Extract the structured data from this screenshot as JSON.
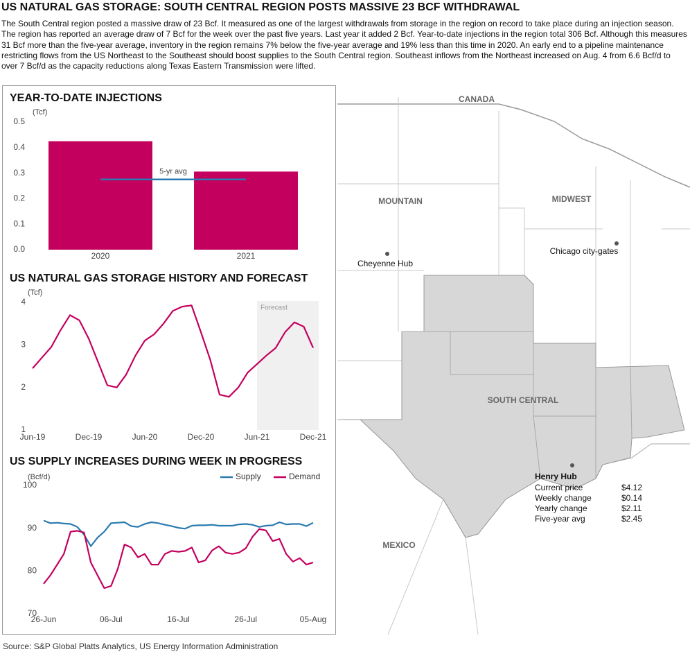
{
  "header": {
    "title": "US NATURAL GAS STORAGE: SOUTH CENTRAL REGION POSTS MASSIVE 23 BCF WITHDRAWAL",
    "body": "The South Central region posted a massive draw of 23 Bcf. It measured as one of the largest withdrawals from storage in the region on record to take place during an injection season. The region has reported an average draw of 7 Bcf for the week over the past five years. Last year it added 2 Bcf. Year-to-date injections in the region total 306 Bcf. Although this measures 31 Bcf more than the five-year average, inventory in the region remains 7% below the five-year average and 19% less than this time in 2020. An early end to a pipeline maintenance restricting flows from the US Northeast to the Southeast should boost supplies to the South Central region. Southeast inflows from the Northeast increased on Aug. 4 from 6.6 Bcf/d to over 7 Bcf/d as the capacity reductions along Texas Eastern Transmission were lifted."
  },
  "chart_data": [
    {
      "type": "bar",
      "title": "YEAR-TO-DATE INJECTIONS",
      "y_label": "(Tcf)",
      "categories": [
        "2020",
        "2021"
      ],
      "values": [
        0.425,
        0.306
      ],
      "color": "#c4005e",
      "ylim": [
        0,
        0.5
      ],
      "yticks": [
        {
          "value": 0,
          "label": "0.0"
        },
        0.1,
        0.2,
        0.3,
        0.4,
        0.5
      ],
      "reference": {
        "label": "5-yr avg",
        "value": 0.275,
        "color": "#2a7ab0"
      }
    },
    {
      "type": "line",
      "title": "US NATURAL GAS STORAGE HISTORY AND FORECAST",
      "y_label": "(Tcf)",
      "categories": [
        "Jun-19",
        null,
        null,
        null,
        null,
        null,
        "Dec-19",
        null,
        null,
        null,
        null,
        null,
        "Jun-20",
        null,
        null,
        null,
        null,
        null,
        "Dec-20",
        null,
        null,
        null,
        null,
        null,
        "Jun-21",
        null,
        null,
        null,
        null,
        null,
        "Dec-21"
      ],
      "color": "#c4005e",
      "values": [
        2.45,
        2.7,
        2.95,
        3.35,
        3.7,
        3.58,
        3.15,
        2.6,
        2.05,
        2.0,
        2.3,
        2.75,
        3.1,
        3.25,
        3.5,
        3.8,
        3.9,
        3.93,
        3.3,
        2.65,
        1.83,
        1.78,
        2.0,
        2.35,
        2.55,
        2.75,
        2.93,
        3.3,
        3.53,
        3.43,
        2.93
      ],
      "ylim": [
        1,
        4
      ],
      "yticks": [
        1,
        2,
        3,
        4
      ],
      "shaded_label": "Forecast",
      "shaded_from": "Jun-21"
    },
    {
      "type": "line",
      "title": "US SUPPLY INCREASES DURING WEEK IN PROGRESS",
      "y_label": "(Bcf/d)",
      "categories": [
        "26-Jun",
        null,
        null,
        null,
        null,
        null,
        null,
        null,
        null,
        null,
        "06-Jul",
        null,
        null,
        null,
        null,
        null,
        null,
        null,
        null,
        null,
        "16-Jul",
        null,
        null,
        null,
        null,
        null,
        null,
        null,
        null,
        null,
        "26-Jul",
        null,
        null,
        null,
        null,
        null,
        null,
        null,
        null,
        null,
        "05-Aug"
      ],
      "series": [
        {
          "name": "Supply",
          "color": "#2a7ab0",
          "values": [
            91.8,
            91.2,
            91.3,
            91.1,
            91.0,
            90.3,
            88.5,
            85.8,
            87.8,
            89.2,
            91.2,
            91.3,
            91.4,
            90.5,
            90.3,
            91.0,
            91.4,
            91.2,
            90.8,
            90.5,
            90.1,
            89.9,
            90.6,
            90.7,
            90.7,
            90.8,
            90.6,
            90.6,
            90.6,
            90.9,
            91.0,
            90.8,
            90.3,
            90.6,
            90.7,
            91.4,
            90.9,
            91.0,
            91.0,
            90.5,
            91.3
          ]
        },
        {
          "name": "Demand",
          "color": "#c4005e",
          "values": [
            77.0,
            79.0,
            81.5,
            84.0,
            89.2,
            89.4,
            89.0,
            82.0,
            79.0,
            76.0,
            76.5,
            80.5,
            86.2,
            85.5,
            83.2,
            84.0,
            81.5,
            81.5,
            84.0,
            84.7,
            84.5,
            84.7,
            85.5,
            82.0,
            82.5,
            84.8,
            85.8,
            84.3,
            84.0,
            84.3,
            85.3,
            88.0,
            89.8,
            89.5,
            87.0,
            87.5,
            84.0,
            82.2,
            83.0,
            81.5,
            82.0
          ]
        }
      ],
      "ylim": [
        70,
        100
      ],
      "yticks": [
        70,
        80,
        90,
        100
      ],
      "legend": "top-right"
    }
  ],
  "map": {
    "region_labels": [
      "CANADA",
      "MOUNTAIN",
      "MIDWEST",
      "SOUTH CENTRAL",
      "MEXICO"
    ],
    "hubs": [
      "Cheyenne Hub",
      "Chicago city-gates"
    ]
  },
  "henry_hub": {
    "title": "Henry Hub",
    "rows": [
      [
        "Current price",
        "$4.12"
      ],
      [
        "Weekly change",
        "$0.14"
      ],
      [
        "Yearly change",
        "$2.11"
      ],
      [
        "Five-year avg",
        "$2.45"
      ]
    ]
  },
  "source": "Source: S&P Global Platts Analytics, US Energy Information Administration"
}
